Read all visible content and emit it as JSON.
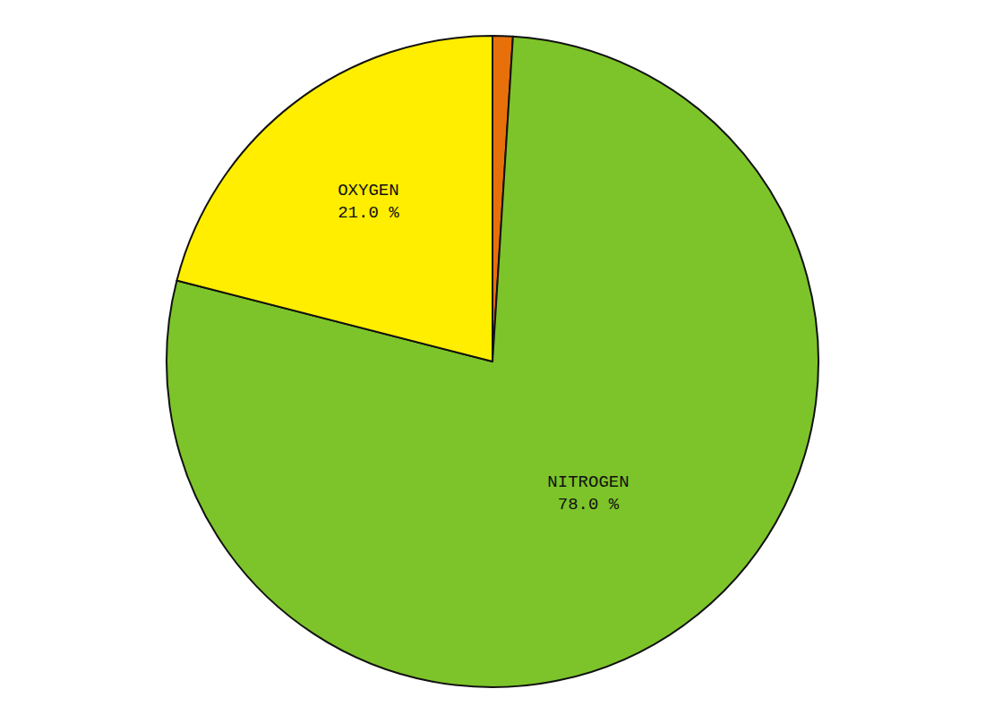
{
  "chart_data": {
    "type": "pie",
    "categories": [
      null,
      "NITROGEN",
      "OXYGEN"
    ],
    "values": [
      1.0,
      78.0,
      21.0
    ],
    "value_labels": [
      null,
      "78.0 %",
      "21.0 %"
    ],
    "colors": [
      "#E8700A",
      "#7DC42A",
      "#FFEE00"
    ],
    "data_labels": true
  }
}
